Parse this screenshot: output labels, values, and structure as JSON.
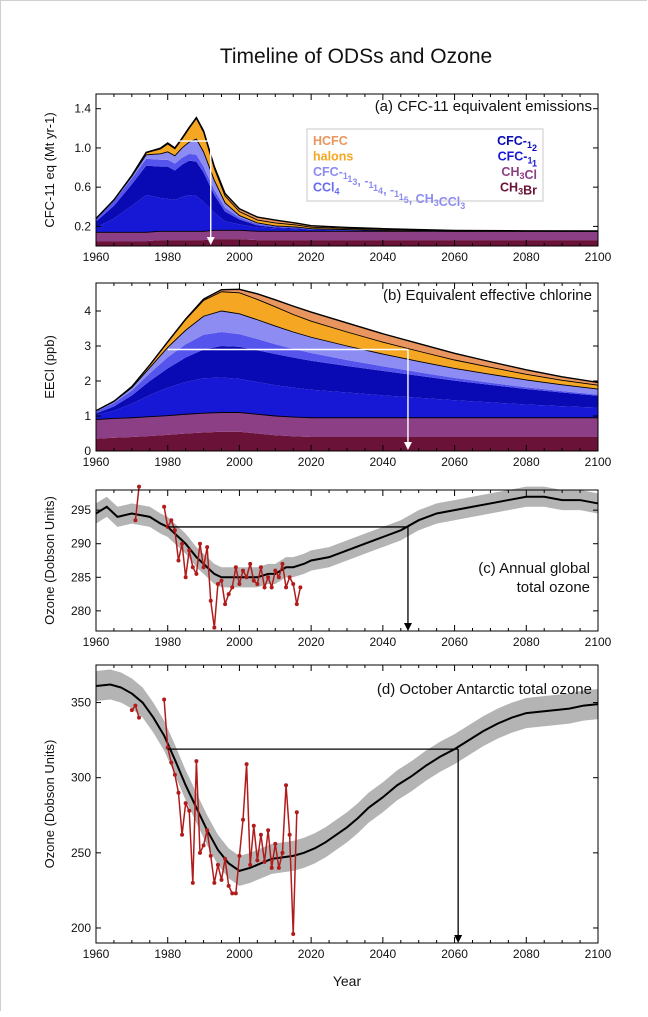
{
  "figure": {
    "title": "Timeline of ODSs and Ozone",
    "xlabel": "Year"
  },
  "colors": {
    "CH3Br": "#6b1238",
    "CH3Cl": "#8c3f85",
    "CFC-11": "#1717d6",
    "CFC-12": "#0a0ab4",
    "CCl4": "#5555ee",
    "CFC-113": "#8c8cf2",
    "halons": "#f5a623",
    "HCFC": "#e8955f",
    "obs": "#b01c1c",
    "model": "#000000",
    "band": "#b4b4b4",
    "arrow_ab": "#ffffff",
    "arrow_cd": "#000000"
  },
  "legend": {
    "left": [
      {
        "key": "HCFC",
        "label": "HCFC",
        "color": "#e8955f"
      },
      {
        "key": "halons",
        "label": "halons",
        "color": "#f5a623"
      },
      {
        "key": "CFC-113",
        "label": "CFC-113, -114, -115, CH3CCl3",
        "color": "#8c8cf2"
      },
      {
        "key": "CCl4",
        "label": "CCl4",
        "color": "#6a6af0"
      }
    ],
    "right": [
      {
        "key": "CFC-12",
        "label": "CFC-12",
        "color": "#0a0ab4"
      },
      {
        "key": "CFC-11",
        "label": "CFC-11",
        "color": "#1717d6"
      },
      {
        "key": "CH3Cl",
        "label": "CH3Cl",
        "color": "#8c3f85"
      },
      {
        "key": "CH3Br",
        "label": "CH3Br",
        "color": "#6b1238"
      }
    ]
  },
  "chart_data": [
    {
      "id": "a",
      "type": "area",
      "title": "(a) CFC-11 equivalent emissions",
      "ylabel": "CFC-11 eq (Mt yr-1)",
      "xlim": [
        1960,
        2100
      ],
      "ylim": [
        0,
        1.55
      ],
      "xticks": [
        1960,
        1980,
        2000,
        2020,
        2040,
        2060,
        2080,
        2100
      ],
      "yticks": [
        0.2,
        0.6,
        1.0,
        1.4
      ],
      "years": [
        1960,
        1965,
        1970,
        1974,
        1978,
        1980,
        1982,
        1984,
        1986,
        1988,
        1990,
        1993,
        1996,
        2000,
        2005,
        2010,
        2016,
        2020,
        2030,
        2040,
        2060,
        2080,
        2100
      ],
      "series": [
        {
          "name": "CH3Br",
          "values": [
            0.05,
            0.05,
            0.05,
            0.05,
            0.06,
            0.06,
            0.06,
            0.06,
            0.06,
            0.06,
            0.06,
            0.07,
            0.07,
            0.07,
            0.06,
            0.06,
            0.06,
            0.06,
            0.06,
            0.06,
            0.06,
            0.06,
            0.06
          ]
        },
        {
          "name": "CH3Cl",
          "values": [
            0.09,
            0.09,
            0.09,
            0.09,
            0.09,
            0.09,
            0.09,
            0.09,
            0.09,
            0.09,
            0.09,
            0.09,
            0.09,
            0.09,
            0.09,
            0.09,
            0.09,
            0.09,
            0.09,
            0.09,
            0.09,
            0.09,
            0.09
          ]
        },
        {
          "name": "CFC-11",
          "values": [
            0.05,
            0.14,
            0.27,
            0.38,
            0.34,
            0.33,
            0.32,
            0.35,
            0.37,
            0.36,
            0.3,
            0.18,
            0.09,
            0.06,
            0.04,
            0.03,
            0.02,
            0.015,
            0.01,
            0.005,
            0.0,
            0.0,
            0.0
          ]
        },
        {
          "name": "CFC-12",
          "values": [
            0.06,
            0.13,
            0.22,
            0.3,
            0.32,
            0.33,
            0.3,
            0.33,
            0.35,
            0.35,
            0.3,
            0.18,
            0.1,
            0.05,
            0.02,
            0.01,
            0.01,
            0.005,
            0.003,
            0.002,
            0.0,
            0.0,
            0.0
          ]
        },
        {
          "name": "CCl4",
          "values": [
            0.03,
            0.05,
            0.06,
            0.07,
            0.07,
            0.07,
            0.07,
            0.07,
            0.07,
            0.07,
            0.06,
            0.05,
            0.04,
            0.02,
            0.015,
            0.01,
            0.01,
            0.005,
            0.003,
            0.002,
            0.0,
            0.0,
            0.0
          ]
        },
        {
          "name": "CFC-113",
          "values": [
            0.0,
            0.01,
            0.02,
            0.04,
            0.06,
            0.08,
            0.08,
            0.1,
            0.12,
            0.16,
            0.15,
            0.1,
            0.05,
            0.02,
            0.01,
            0.005,
            0.003,
            0.002,
            0.001,
            0.0,
            0.0,
            0.0,
            0.0
          ]
        },
        {
          "name": "halons",
          "values": [
            0.0,
            0.0,
            0.01,
            0.02,
            0.05,
            0.08,
            0.07,
            0.09,
            0.14,
            0.21,
            0.2,
            0.12,
            0.07,
            0.04,
            0.03,
            0.03,
            0.02,
            0.015,
            0.012,
            0.01,
            0.005,
            0.003,
            0.002
          ]
        },
        {
          "name": "HCFC",
          "values": [
            0.0,
            0.0,
            0.0,
            0.005,
            0.008,
            0.01,
            0.01,
            0.01,
            0.01,
            0.01,
            0.015,
            0.02,
            0.025,
            0.03,
            0.03,
            0.03,
            0.02,
            0.015,
            0.01,
            0.008,
            0.004,
            0.002,
            0.001
          ]
        }
      ],
      "reference": {
        "level": 1.07,
        "from_year": 1978,
        "to_year": 1992
      }
    },
    {
      "id": "b",
      "type": "area",
      "title": "(b) Equivalent effective chlorine",
      "ylabel": "EECl (ppb)",
      "xlim": [
        1960,
        2100
      ],
      "ylim": [
        0,
        4.8
      ],
      "xticks": [
        1960,
        1980,
        2000,
        2020,
        2040,
        2060,
        2080,
        2100
      ],
      "yticks": [
        0,
        1,
        2,
        3,
        4
      ],
      "years": [
        1960,
        1965,
        1970,
        1975,
        1980,
        1985,
        1990,
        1995,
        2000,
        2005,
        2010,
        2015,
        2020,
        2030,
        2040,
        2050,
        2060,
        2070,
        2080,
        2090,
        2100
      ],
      "series": [
        {
          "name": "CH3Br",
          "values": [
            0.35,
            0.38,
            0.4,
            0.43,
            0.46,
            0.5,
            0.53,
            0.55,
            0.55,
            0.5,
            0.45,
            0.42,
            0.4,
            0.4,
            0.4,
            0.4,
            0.4,
            0.4,
            0.4,
            0.4,
            0.4
          ]
        },
        {
          "name": "CH3Cl",
          "values": [
            0.55,
            0.55,
            0.55,
            0.55,
            0.55,
            0.55,
            0.55,
            0.55,
            0.55,
            0.55,
            0.55,
            0.55,
            0.55,
            0.55,
            0.55,
            0.55,
            0.55,
            0.55,
            0.55,
            0.55,
            0.55
          ]
        },
        {
          "name": "CFC-11",
          "values": [
            0.12,
            0.22,
            0.4,
            0.62,
            0.8,
            0.92,
            1.0,
            1.0,
            0.96,
            0.92,
            0.88,
            0.84,
            0.8,
            0.72,
            0.64,
            0.57,
            0.5,
            0.44,
            0.38,
            0.33,
            0.29
          ]
        },
        {
          "name": "CFC-12",
          "values": [
            0.05,
            0.12,
            0.24,
            0.4,
            0.55,
            0.7,
            0.82,
            0.9,
            0.92,
            0.91,
            0.89,
            0.86,
            0.83,
            0.76,
            0.7,
            0.63,
            0.56,
            0.5,
            0.44,
            0.39,
            0.34
          ]
        },
        {
          "name": "CCl4",
          "values": [
            0.06,
            0.1,
            0.14,
            0.22,
            0.32,
            0.38,
            0.42,
            0.4,
            0.36,
            0.32,
            0.28,
            0.25,
            0.22,
            0.17,
            0.13,
            0.1,
            0.08,
            0.06,
            0.05,
            0.04,
            0.03
          ]
        },
        {
          "name": "CFC-113",
          "values": [
            0.02,
            0.04,
            0.08,
            0.16,
            0.28,
            0.4,
            0.53,
            0.6,
            0.58,
            0.55,
            0.52,
            0.48,
            0.45,
            0.4,
            0.35,
            0.31,
            0.27,
            0.24,
            0.21,
            0.18,
            0.16
          ]
        },
        {
          "name": "halons",
          "values": [
            0.0,
            0.01,
            0.03,
            0.08,
            0.15,
            0.3,
            0.45,
            0.55,
            0.6,
            0.58,
            0.55,
            0.5,
            0.46,
            0.4,
            0.34,
            0.29,
            0.24,
            0.2,
            0.16,
            0.13,
            0.11
          ]
        },
        {
          "name": "HCFC",
          "values": [
            0.0,
            0.0,
            0.0,
            0.0,
            0.01,
            0.02,
            0.04,
            0.06,
            0.1,
            0.16,
            0.2,
            0.24,
            0.26,
            0.26,
            0.24,
            0.22,
            0.19,
            0.16,
            0.13,
            0.1,
            0.08
          ]
        }
      ],
      "reference": {
        "level": 2.9,
        "from_year": 1980,
        "to_year": 2047
      }
    },
    {
      "id": "c",
      "type": "line",
      "title": "(c) Annual global total ozone",
      "ylabel": "Ozone (Dobson Units)",
      "xlim": [
        1960,
        2100
      ],
      "ylim": [
        277,
        298
      ],
      "xticks": [
        1960,
        1980,
        2000,
        2020,
        2040,
        2060,
        2080,
        2100
      ],
      "yticks": [
        280,
        285,
        290,
        295
      ],
      "model": {
        "x": [
          1960,
          1963,
          1966,
          1970,
          1975,
          1978,
          1980,
          1982,
          1985,
          1988,
          1990,
          1993,
          1995,
          1998,
          2000,
          2003,
          2005,
          2008,
          2010,
          2013,
          2015,
          2018,
          2020,
          2025,
          2030,
          2035,
          2040,
          2045,
          2050,
          2055,
          2060,
          2065,
          2070,
          2075,
          2080,
          2085,
          2090,
          2095,
          2100
        ],
        "y": [
          294.5,
          295.5,
          294.0,
          294.5,
          294.0,
          293.0,
          292.5,
          291.5,
          290.0,
          288.0,
          287.0,
          285.5,
          285.0,
          285.0,
          285.0,
          285.0,
          285.0,
          285.5,
          285.5,
          286.5,
          286.5,
          287.0,
          287.5,
          288.0,
          289.0,
          290.0,
          291.0,
          292.0,
          293.5,
          294.5,
          295.0,
          295.5,
          296.0,
          296.5,
          297.0,
          297.0,
          296.5,
          296.5,
          296.0
        ],
        "band_halfwidth": 1.5
      },
      "observed": {
        "x": [
          1971,
          1972,
          1979,
          1980,
          1981,
          1982,
          1983,
          1984,
          1985,
          1986,
          1987,
          1988,
          1989,
          1990,
          1991,
          1992,
          1993,
          1994,
          1995,
          1996,
          1997,
          1998,
          1999,
          2000,
          2001,
          2002,
          2003,
          2004,
          2005,
          2006,
          2007,
          2008,
          2009,
          2010,
          2011,
          2012,
          2013,
          2014,
          2015,
          2016,
          2017
        ],
        "y": [
          293.5,
          298.5,
          295.5,
          292.5,
          293.5,
          292.0,
          287.5,
          290.0,
          285.0,
          289.0,
          286.5,
          285.5,
          290.0,
          286.5,
          289.5,
          281.5,
          277.5,
          284.0,
          284.5,
          281.0,
          282.5,
          283.5,
          286.5,
          284.0,
          286.0,
          285.0,
          287.0,
          284.5,
          284.0,
          286.5,
          283.5,
          285.0,
          283.5,
          286.0,
          285.0,
          287.0,
          283.5,
          285.0,
          284.0,
          281.0,
          283.5
        ]
      },
      "reference": {
        "level": 292.5,
        "from_year": 1980,
        "to_year": 2047
      }
    },
    {
      "id": "d",
      "type": "line",
      "title": "(d) October Antarctic total ozone",
      "ylabel": "Ozone (Dobson Units)",
      "xlim": [
        1960,
        2100
      ],
      "ylim": [
        190,
        375
      ],
      "xticks": [
        1960,
        1980,
        2000,
        2020,
        2040,
        2060,
        2080,
        2100
      ],
      "yticks": [
        200,
        250,
        300,
        350
      ],
      "model": {
        "x": [
          1960,
          1964,
          1967,
          1970,
          1973,
          1976,
          1979,
          1982,
          1985,
          1988,
          1991,
          1994,
          1997,
          2000,
          2003,
          2006,
          2009,
          2012,
          2015,
          2018,
          2021,
          2024,
          2027,
          2030,
          2033,
          2036,
          2040,
          2044,
          2048,
          2052,
          2056,
          2060,
          2064,
          2068,
          2072,
          2076,
          2080,
          2084,
          2088,
          2092,
          2096,
          2100
        ],
        "y": [
          361,
          362,
          360,
          356,
          350,
          340,
          328,
          312,
          295,
          280,
          265,
          252,
          243,
          238,
          240,
          243,
          246,
          247,
          248,
          250,
          253,
          257,
          262,
          267,
          273,
          280,
          287,
          295,
          301,
          308,
          314,
          319,
          325,
          331,
          336,
          340,
          343,
          344,
          345,
          346,
          348,
          349
        ],
        "band_halfwidth": 10
      },
      "observed": {
        "x": [
          1970,
          1971,
          1972,
          1979,
          1980,
          1981,
          1982,
          1983,
          1984,
          1985,
          1986,
          1987,
          1988,
          1989,
          1990,
          1991,
          1992,
          1993,
          1994,
          1995,
          1996,
          1997,
          1998,
          1999,
          2000,
          2001,
          2002,
          2003,
          2004,
          2005,
          2006,
          2007,
          2008,
          2009,
          2010,
          2011,
          2012,
          2013,
          2014,
          2015,
          2016
        ],
        "y": [
          345,
          348,
          340,
          352,
          320,
          310,
          302,
          290,
          262,
          283,
          278,
          230,
          311,
          250,
          255,
          265,
          248,
          230,
          242,
          232,
          246,
          228,
          223,
          223,
          248,
          272,
          309,
          242,
          268,
          245,
          262,
          244,
          265,
          240,
          256,
          240,
          250,
          295,
          262,
          196,
          277
        ]
      },
      "reference": {
        "level": 319,
        "from_year": 1980,
        "to_year": 2061
      }
    }
  ]
}
